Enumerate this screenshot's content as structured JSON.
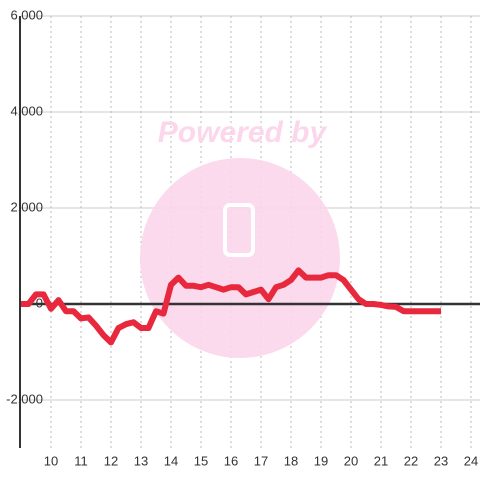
{
  "chart_data": {
    "type": "line",
    "watermark": "Powered by",
    "x": [
      9,
      9.25,
      9.5,
      9.75,
      10,
      10.25,
      10.5,
      10.75,
      11,
      11.25,
      11.5,
      11.75,
      12,
      12.25,
      12.5,
      12.75,
      13,
      13.25,
      13.5,
      13.75,
      14,
      14.25,
      14.5,
      14.75,
      15,
      15.25,
      15.5,
      15.75,
      16,
      16.25,
      16.5,
      16.75,
      17,
      17.25,
      17.5,
      17.75,
      18,
      18.25,
      18.5,
      18.75,
      19,
      19.25,
      19.5,
      19.75,
      20,
      20.25,
      20.5,
      20.75,
      21,
      21.25,
      21.5,
      21.75,
      22,
      22.25,
      22.5,
      22.75,
      23
    ],
    "series": [
      {
        "color": "#e8283c",
        "values": [
          0,
          0,
          200,
          200,
          -100,
          80,
          -150,
          -150,
          -300,
          -280,
          -450,
          -650,
          -800,
          -500,
          -420,
          -380,
          -500,
          -500,
          -150,
          -200,
          400,
          550,
          380,
          380,
          350,
          400,
          350,
          300,
          350,
          350,
          200,
          250,
          300,
          100,
          350,
          400,
          500,
          700,
          550,
          550,
          550,
          600,
          600,
          500,
          300,
          100,
          0,
          0,
          -20,
          -50,
          -60,
          -150,
          -150,
          -150,
          -150,
          -150,
          -150
        ]
      }
    ],
    "xlim": [
      9,
      24.35
    ],
    "xticks": [
      10,
      11,
      12,
      13,
      14,
      15,
      16,
      17,
      18,
      19,
      20,
      21,
      22,
      23,
      24
    ],
    "ylim": [
      -3000,
      6000
    ],
    "yticks": [
      {
        "value": -2000,
        "label": "-2,000"
      },
      0,
      {
        "value": 2000,
        "label": "2,000"
      },
      {
        "value": 4000,
        "label": "4,000"
      },
      {
        "value": 6000,
        "label": "6,000"
      }
    ],
    "grid": true
  }
}
